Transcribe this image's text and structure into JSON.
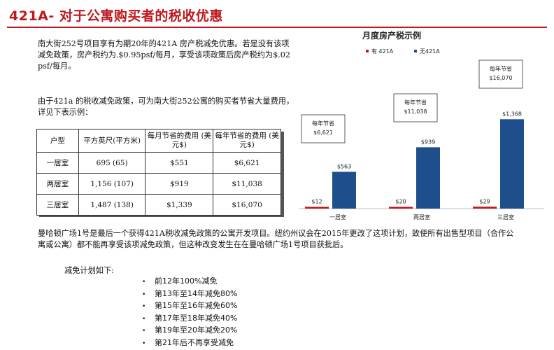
{
  "title": "421A- 对于公寓购买者的税收优惠",
  "intro_paragraph": "南大街252号项目享有为期20年的421A 房产税减免优惠。若是没有该项减免政策，房产税约为.$0.95psf/每月，享受该项政策后房产税约为$.02 psf/每月。",
  "savings_paragraph": "由于421a 的税收减免政策，可为南大街252公寓的购买者节省大量费用，详见下表示例：",
  "table": {
    "headers": [
      "户型",
      "平方英尺(平方米)",
      "每月节省的费用 (美元$)",
      "每年节省的费用 (美元$)"
    ],
    "rows": [
      [
        "一居室",
        "695 (65)",
        "$551",
        "$6,621"
      ],
      [
        "两居室",
        "1,156 (107)",
        "$919",
        "$11,038"
      ],
      [
        "三居室",
        "1,487 (138)",
        "$1,339",
        "$16,070"
      ]
    ]
  },
  "policy_paragraph": "曼哈顿广场1号是最后一个获得421A税收减免政策的公寓开发项目。纽约州议会在2015年更改了这项计划，致使所有出售型项目（合作公寓或公寓）都不能再享受该项减免政策，但这种改变发生在在曼哈顿广场1号项目获批后。",
  "schedule": {
    "title": "减免计划如下:",
    "bullet": "•",
    "items": [
      "前12年100%减免",
      "第13年至14年减免80%",
      "第15年至16年减免60%",
      "第17年至18年减免40%",
      "第19年至20年减免20%",
      "第21年后不再享受减免"
    ]
  },
  "colors": {
    "title_red": "#c0171d",
    "with_421a": "#c0171d",
    "without_421a": "#1f4e8c"
  },
  "chart_data": {
    "type": "bar",
    "title": "月度房产税示例",
    "categories": [
      "一居室",
      "两居室",
      "三居室"
    ],
    "series": [
      {
        "name": "有 421A",
        "values": [
          12,
          20,
          29
        ],
        "labels": [
          "$12",
          "$20",
          "$29"
        ]
      },
      {
        "name": "无421A",
        "values": [
          563,
          939,
          1368
        ],
        "labels": [
          "$563",
          "$939",
          "$1,368"
        ]
      }
    ],
    "annotations": [
      {
        "text": "每年节省",
        "value": "$6,621"
      },
      {
        "text": "每年节省",
        "value": "$11,038"
      },
      {
        "text": "每年节省",
        "value": "$16,070"
      }
    ],
    "ylim": [
      0,
      1500
    ],
    "legend_position": "top-left",
    "grid": false
  }
}
